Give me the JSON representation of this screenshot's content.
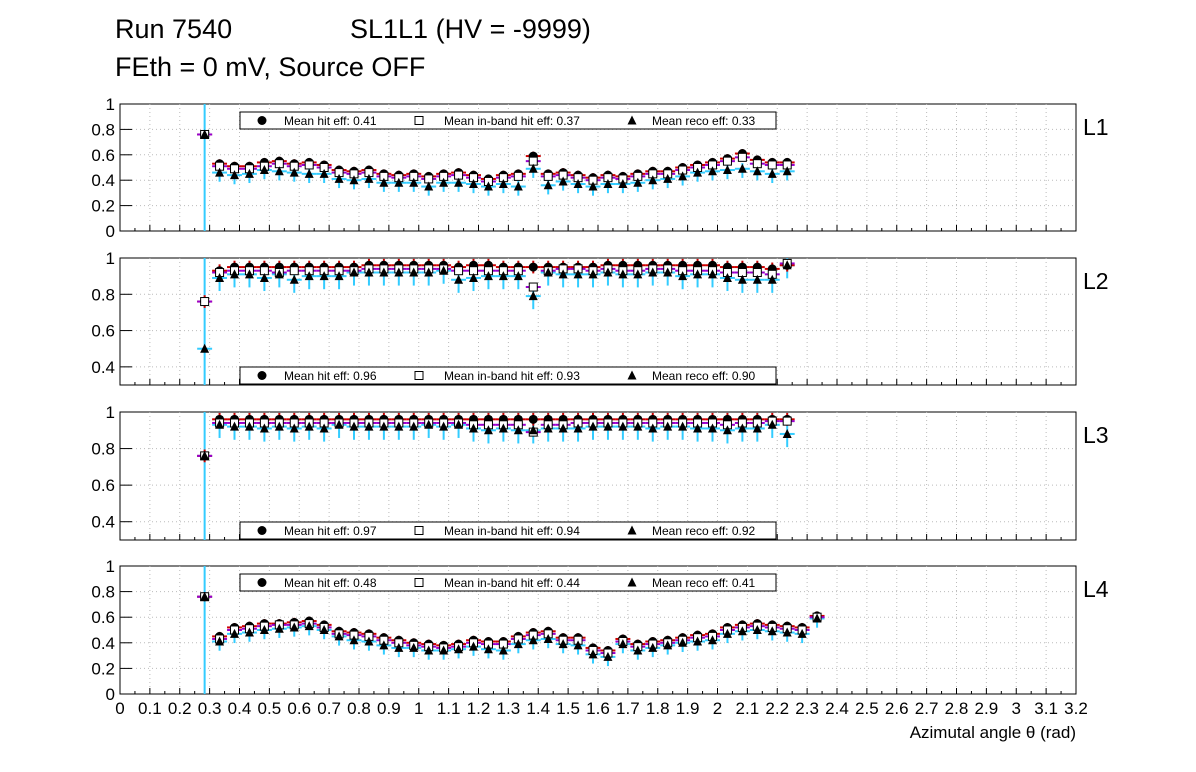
{
  "header": {
    "run": "Run 7540",
    "chamber": "SL1L1 (HV = -9999)",
    "conditions": "FEth = 0 mV, Source OFF"
  },
  "colors": {
    "hit": "#000000",
    "hit_err": "#cc0000",
    "inband": "#ffffff",
    "inband_err": "#9900cc",
    "reco": "#000000",
    "reco_err": "#33ccff",
    "grid": "#bbbbbb"
  },
  "chart_data": {
    "type": "scatter",
    "xlabel": "Azimutal angle θ (rad)",
    "xlim": [
      0,
      3.2
    ],
    "xticks": [
      0,
      0.1,
      0.2,
      0.3,
      0.4,
      0.5,
      0.6,
      0.7,
      0.8,
      0.9,
      1,
      1.1,
      1.2,
      1.3,
      1.4,
      1.5,
      1.6,
      1.7,
      1.8,
      1.9,
      2,
      2.1,
      2.2,
      2.3,
      2.4,
      2.5,
      2.6,
      2.7,
      2.8,
      2.9,
      3,
      3.1,
      3.2
    ],
    "xtick_labels": [
      "0",
      "0.1",
      "0.2",
      "0.3",
      "0.4",
      "0.5",
      "0.6",
      "0.7",
      "0.8",
      "0.9",
      "1",
      "1.1",
      "1.2",
      "1.3",
      "1.4",
      "1.5",
      "1.6",
      "1.7",
      "1.8",
      "1.9",
      "2",
      "2.1",
      "2.2",
      "2.3",
      "2.4",
      "2.5",
      "2.6",
      "2.7",
      "2.8",
      "2.9",
      "3",
      "3.1",
      "3.2"
    ],
    "x_first": 0.2833,
    "x_step": 0.05,
    "panels": [
      {
        "label": "L1",
        "ylim": [
          0,
          1
        ],
        "yticks": [
          0,
          0.2,
          0.4,
          0.6,
          0.8,
          1
        ],
        "ytick_labels": [
          "0",
          "0.2",
          "0.4",
          "0.6",
          "0.8",
          "1"
        ],
        "legend": {
          "hit": "Mean hit  eff: 0.41",
          "inband": "Mean in-band hit eff: 0.37",
          "reco": "Mean reco eff: 0.33"
        },
        "legend_pos": "top",
        "series": {
          "hit": [
            0.76,
            0.53,
            0.51,
            0.51,
            0.54,
            0.55,
            0.53,
            0.54,
            0.52,
            0.48,
            0.47,
            0.48,
            0.45,
            0.44,
            0.45,
            0.43,
            0.45,
            0.46,
            0.44,
            0.41,
            0.44,
            0.45,
            0.59,
            0.45,
            0.46,
            0.44,
            0.42,
            0.44,
            0.43,
            0.45,
            0.47,
            0.47,
            0.5,
            0.52,
            0.54,
            0.57,
            0.61,
            0.56,
            0.54,
            0.54
          ],
          "inband": [
            0.76,
            0.51,
            0.49,
            0.49,
            0.51,
            0.53,
            0.51,
            0.52,
            0.5,
            0.46,
            0.45,
            0.46,
            0.43,
            0.42,
            0.43,
            0.41,
            0.43,
            0.44,
            0.42,
            0.39,
            0.42,
            0.43,
            0.55,
            0.43,
            0.44,
            0.42,
            0.4,
            0.42,
            0.41,
            0.43,
            0.45,
            0.45,
            0.48,
            0.5,
            0.52,
            0.55,
            0.58,
            0.53,
            0.52,
            0.52
          ],
          "reco": [
            0.76,
            0.46,
            0.44,
            0.45,
            0.48,
            0.47,
            0.46,
            0.45,
            0.45,
            0.41,
            0.4,
            0.41,
            0.38,
            0.38,
            0.38,
            0.35,
            0.38,
            0.38,
            0.37,
            0.35,
            0.37,
            0.35,
            0.49,
            0.36,
            0.39,
            0.37,
            0.35,
            0.37,
            0.37,
            0.38,
            0.4,
            0.41,
            0.43,
            0.46,
            0.47,
            0.48,
            0.49,
            0.47,
            0.45,
            0.47
          ]
        }
      },
      {
        "label": "L2",
        "ylim": [
          0.3,
          1
        ],
        "yticks": [
          0.4,
          0.6,
          0.8,
          1
        ],
        "ytick_labels": [
          "0.4",
          "0.6",
          "0.8",
          "1"
        ],
        "legend": {
          "hit": "Mean hit  eff: 0.96",
          "inband": "Mean in-band hit eff: 0.93",
          "reco": "Mean reco eff: 0.90"
        },
        "legend_pos": "bottom",
        "series": {
          "hit": [
            0.76,
            0.93,
            0.95,
            0.95,
            0.95,
            0.95,
            0.95,
            0.95,
            0.95,
            0.95,
            0.95,
            0.96,
            0.96,
            0.96,
            0.96,
            0.96,
            0.96,
            0.95,
            0.96,
            0.96,
            0.95,
            0.95,
            0.95,
            0.95,
            0.95,
            0.95,
            0.95,
            0.96,
            0.96,
            0.96,
            0.96,
            0.96,
            0.96,
            0.96,
            0.96,
            0.95,
            0.95,
            0.95,
            0.94,
            0.96
          ],
          "inband": [
            0.76,
            0.92,
            0.93,
            0.93,
            0.93,
            0.92,
            0.93,
            0.93,
            0.93,
            0.93,
            0.93,
            0.94,
            0.94,
            0.94,
            0.94,
            0.94,
            0.94,
            0.93,
            0.93,
            0.93,
            0.93,
            0.93,
            0.84,
            0.93,
            0.94,
            0.94,
            0.93,
            0.94,
            0.93,
            0.93,
            0.94,
            0.94,
            0.93,
            0.93,
            0.93,
            0.92,
            0.92,
            0.92,
            0.91,
            0.97
          ],
          "reco": [
            0.5,
            0.89,
            0.91,
            0.91,
            0.89,
            0.91,
            0.88,
            0.9,
            0.9,
            0.9,
            0.92,
            0.92,
            0.92,
            0.92,
            0.92,
            0.92,
            0.93,
            0.88,
            0.89,
            0.9,
            0.9,
            0.9,
            0.79,
            0.92,
            0.91,
            0.91,
            0.91,
            0.92,
            0.91,
            0.91,
            0.92,
            0.92,
            0.9,
            0.91,
            0.91,
            0.89,
            0.88,
            0.88,
            0.88,
            0.96
          ]
        }
      },
      {
        "label": "L3",
        "ylim": [
          0.3,
          1
        ],
        "yticks": [
          0.4,
          0.6,
          0.8,
          1
        ],
        "ytick_labels": [
          "0.4",
          "0.6",
          "0.8",
          "1"
        ],
        "legend": {
          "hit": "Mean hit  eff: 0.97",
          "inband": "Mean in-band hit eff: 0.94",
          "reco": "Mean reco eff: 0.92"
        },
        "legend_pos": "bottom",
        "series": {
          "hit": [
            0.76,
            0.96,
            0.96,
            0.96,
            0.96,
            0.96,
            0.96,
            0.96,
            0.96,
            0.96,
            0.96,
            0.96,
            0.96,
            0.96,
            0.96,
            0.96,
            0.96,
            0.96,
            0.96,
            0.96,
            0.96,
            0.96,
            0.96,
            0.96,
            0.96,
            0.96,
            0.96,
            0.96,
            0.96,
            0.96,
            0.96,
            0.96,
            0.96,
            0.96,
            0.96,
            0.96,
            0.96,
            0.96,
            0.96,
            0.96
          ],
          "inband": [
            0.76,
            0.94,
            0.94,
            0.94,
            0.94,
            0.94,
            0.94,
            0.94,
            0.94,
            0.94,
            0.94,
            0.94,
            0.94,
            0.94,
            0.94,
            0.94,
            0.94,
            0.94,
            0.93,
            0.93,
            0.93,
            0.93,
            0.89,
            0.93,
            0.93,
            0.94,
            0.94,
            0.94,
            0.94,
            0.94,
            0.94,
            0.94,
            0.94,
            0.94,
            0.94,
            0.93,
            0.94,
            0.94,
            0.95,
            0.95
          ],
          "reco": [
            0.76,
            0.93,
            0.92,
            0.92,
            0.91,
            0.92,
            0.91,
            0.92,
            0.91,
            0.93,
            0.92,
            0.92,
            0.92,
            0.92,
            0.92,
            0.93,
            0.92,
            0.93,
            0.91,
            0.9,
            0.91,
            0.9,
            0.9,
            0.91,
            0.91,
            0.91,
            0.92,
            0.92,
            0.92,
            0.92,
            0.91,
            0.92,
            0.92,
            0.91,
            0.91,
            0.9,
            0.91,
            0.91,
            0.93,
            0.88
          ]
        }
      },
      {
        "label": "L4",
        "ylim": [
          0,
          1
        ],
        "yticks": [
          0,
          0.2,
          0.4,
          0.6,
          0.8,
          1
        ],
        "ytick_labels": [
          "0",
          "0.2",
          "0.4",
          "0.6",
          "0.8",
          "1"
        ],
        "legend": {
          "hit": "Mean hit  eff: 0.48",
          "inband": "Mean in-band hit eff: 0.44",
          "reco": "Mean reco eff: 0.41"
        },
        "legend_pos": "top",
        "series": {
          "hit": [
            0.76,
            0.45,
            0.52,
            0.53,
            0.55,
            0.55,
            0.56,
            0.57,
            0.54,
            0.49,
            0.48,
            0.47,
            0.44,
            0.42,
            0.4,
            0.39,
            0.38,
            0.39,
            0.42,
            0.41,
            0.41,
            0.45,
            0.48,
            0.49,
            0.44,
            0.44,
            0.36,
            0.34,
            0.43,
            0.39,
            0.41,
            0.42,
            0.44,
            0.46,
            0.47,
            0.52,
            0.54,
            0.55,
            0.54,
            0.53,
            0.52,
            0.61
          ],
          "inband": [
            0.76,
            0.43,
            0.5,
            0.51,
            0.53,
            0.54,
            0.54,
            0.55,
            0.52,
            0.47,
            0.46,
            0.45,
            0.42,
            0.4,
            0.38,
            0.37,
            0.36,
            0.37,
            0.4,
            0.39,
            0.39,
            0.43,
            0.46,
            0.47,
            0.42,
            0.42,
            0.34,
            0.32,
            0.41,
            0.37,
            0.39,
            0.4,
            0.42,
            0.44,
            0.45,
            0.5,
            0.52,
            0.53,
            0.52,
            0.51,
            0.5,
            0.6
          ],
          "reco": [
            0.76,
            0.41,
            0.47,
            0.48,
            0.5,
            0.51,
            0.52,
            0.53,
            0.5,
            0.45,
            0.42,
            0.41,
            0.38,
            0.36,
            0.36,
            0.34,
            0.34,
            0.35,
            0.37,
            0.35,
            0.34,
            0.39,
            0.42,
            0.43,
            0.39,
            0.38,
            0.31,
            0.29,
            0.39,
            0.34,
            0.36,
            0.38,
            0.4,
            0.41,
            0.42,
            0.47,
            0.49,
            0.5,
            0.49,
            0.48,
            0.47,
            0.59
          ]
        }
      }
    ]
  }
}
